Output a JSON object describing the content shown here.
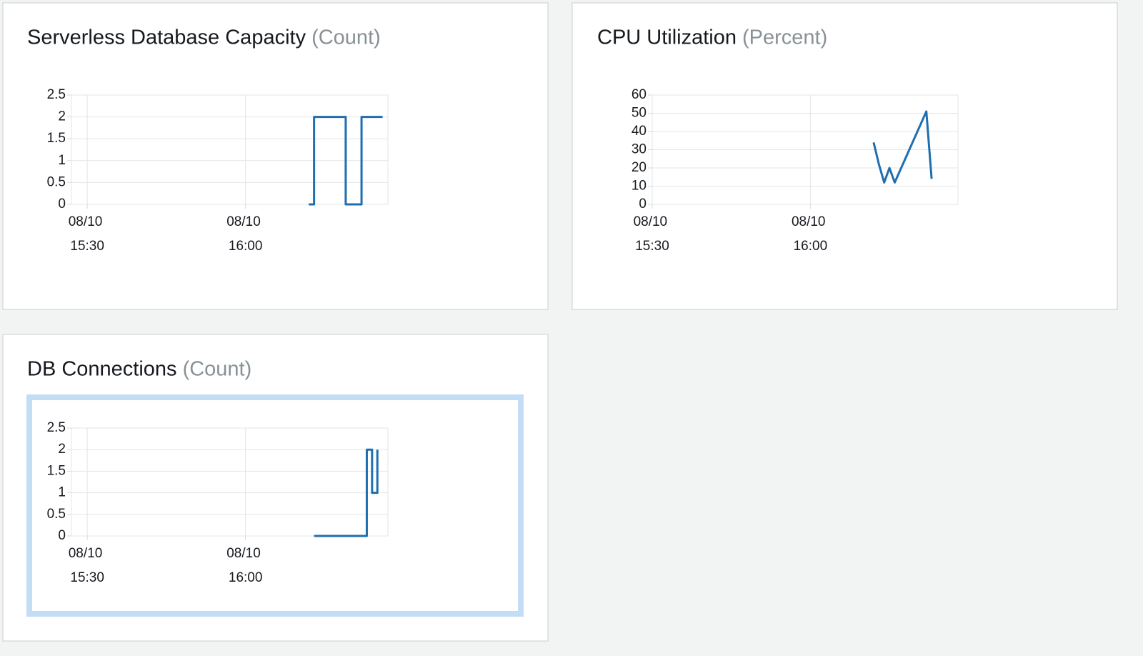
{
  "chart_data": [
    {
      "type": "line",
      "title": "Serverless Database Capacity",
      "unit": "(Count)",
      "drawstyle": "steps-post",
      "color": "#1f6eb0",
      "grid": true,
      "x": [
        "08/10 16:12",
        "08/10 16:13",
        "08/10 16:19",
        "08/10 16:22",
        "08/10 16:26"
      ],
      "values": [
        0,
        2,
        0,
        2,
        2
      ],
      "xlim": [
        "08/10 15:27",
        "08/10 16:27"
      ],
      "xticks": [
        "08/10 15:30",
        "08/10 16:00"
      ],
      "ylim": [
        0,
        2.5
      ],
      "yticks": [
        0,
        0.5,
        1,
        1.5,
        2,
        2.5
      ]
    },
    {
      "type": "line",
      "title": "CPU Utilization",
      "unit": "(Percent)",
      "drawstyle": "default",
      "color": "#1f6eb0",
      "grid": true,
      "x": [
        "08/10 16:12",
        "08/10 16:13",
        "08/10 16:14",
        "08/10 16:15",
        "08/10 16:16",
        "08/10 16:22",
        "08/10 16:23"
      ],
      "values": [
        34,
        22,
        12,
        20,
        12,
        51,
        14
      ],
      "xlim": [
        "08/10 15:30",
        "08/10 16:28"
      ],
      "xticks": [
        "08/10 15:30",
        "08/10 16:00"
      ],
      "ylim": [
        0,
        60
      ],
      "yticks": [
        0,
        10,
        20,
        30,
        40,
        50,
        60
      ]
    },
    {
      "type": "line",
      "title": "DB Connections",
      "unit": "(Count)",
      "drawstyle": "steps-post",
      "color": "#1f6eb0",
      "grid": true,
      "x": [
        "08/10 16:13",
        "08/10 16:23",
        "08/10 16:24",
        "08/10 16:25"
      ],
      "values": [
        0,
        2,
        1,
        2
      ],
      "xlim": [
        "08/10 15:27",
        "08/10 16:27"
      ],
      "xticks": [
        "08/10 15:30",
        "08/10 16:00"
      ],
      "ylim": [
        0,
        2.5
      ],
      "yticks": [
        0,
        0.5,
        1,
        1.5,
        2,
        2.5
      ]
    }
  ]
}
